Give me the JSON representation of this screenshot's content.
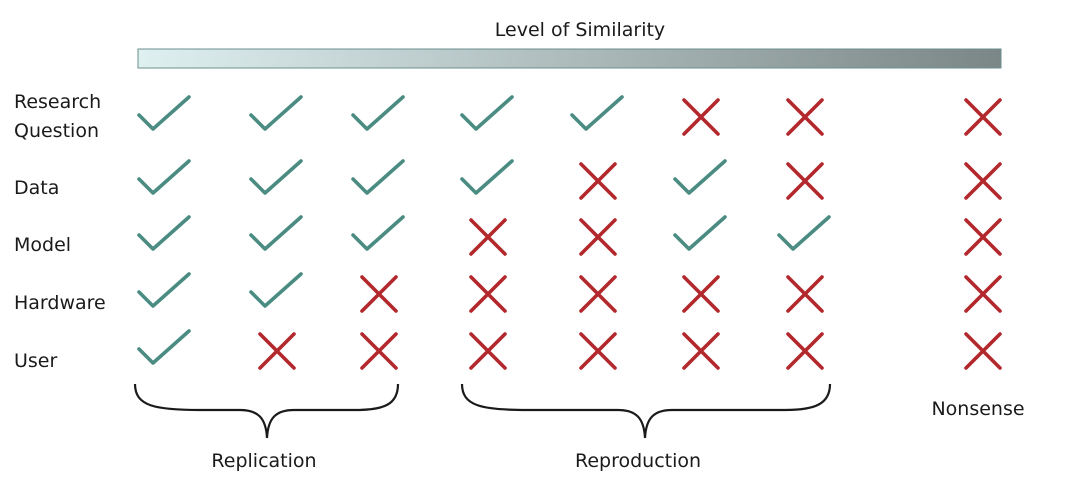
{
  "header": {
    "similarity_label": "Level of Similarity",
    "gradient_colors": [
      "#dff0f0",
      "#7b8686"
    ]
  },
  "rows": [
    {
      "label_lines": [
        "Research",
        "Question"
      ]
    },
    {
      "label_lines": [
        "Data"
      ]
    },
    {
      "label_lines": [
        "Model"
      ]
    },
    {
      "label_lines": [
        "Hardware"
      ]
    },
    {
      "label_lines": [
        "User"
      ]
    }
  ],
  "matrix": [
    [
      "check",
      "check",
      "check",
      "check",
      "check",
      "cross",
      "cross",
      "cross"
    ],
    [
      "check",
      "check",
      "check",
      "check",
      "cross",
      "check",
      "cross",
      "cross"
    ],
    [
      "check",
      "check",
      "check",
      "cross",
      "cross",
      "check",
      "check",
      "cross"
    ],
    [
      "check",
      "check",
      "cross",
      "cross",
      "cross",
      "cross",
      "cross",
      "cross"
    ],
    [
      "check",
      "cross",
      "cross",
      "cross",
      "cross",
      "cross",
      "cross",
      "cross"
    ]
  ],
  "groups": {
    "replication": "Replication",
    "reproduction": "Reproduction",
    "nonsense": "Nonsense"
  },
  "colors": {
    "check": "#4a8c82",
    "cross": "#b3282d",
    "brace": "#1a1a1a"
  }
}
